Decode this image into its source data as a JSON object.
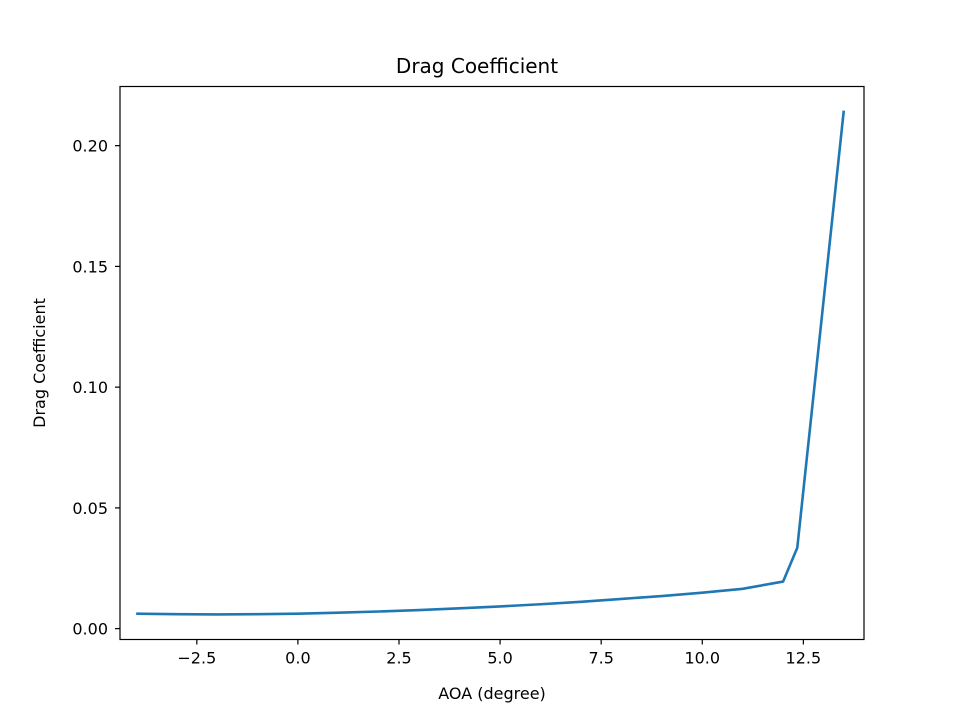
{
  "chart_data": {
    "type": "line",
    "title": "Drag Coefficient",
    "xlabel": "AOA (degree)",
    "ylabel": "Drag Coefficient",
    "xlim": [
      -4.4,
      14.0
    ],
    "ylim": [
      -0.0045,
      0.2245
    ],
    "xticks": [
      -2.5,
      0.0,
      2.5,
      5.0,
      7.5,
      10.0,
      12.5
    ],
    "xtick_labels": [
      "−2.5",
      "0.0",
      "2.5",
      "5.0",
      "7.5",
      "10.0",
      "12.5"
    ],
    "yticks": [
      0.0,
      0.05,
      0.1,
      0.15,
      0.2
    ],
    "ytick_labels": [
      "0.00",
      "0.05",
      "0.10",
      "0.15",
      "0.20"
    ],
    "grid": false,
    "series": [
      {
        "color": "#1f77b4",
        "x": [
          -4.0,
          -3.0,
          -2.0,
          -1.0,
          0.0,
          1.0,
          2.0,
          3.0,
          4.0,
          5.0,
          6.0,
          7.0,
          8.0,
          9.0,
          10.0,
          11.0,
          12.0,
          12.35,
          13.5
        ],
        "y": [
          0.0062,
          0.006,
          0.0059,
          0.006,
          0.0062,
          0.0066,
          0.0071,
          0.0077,
          0.0084,
          0.0092,
          0.0101,
          0.0111,
          0.0123,
          0.0135,
          0.0149,
          0.0165,
          0.0195,
          0.0335,
          0.2145
        ]
      }
    ]
  }
}
